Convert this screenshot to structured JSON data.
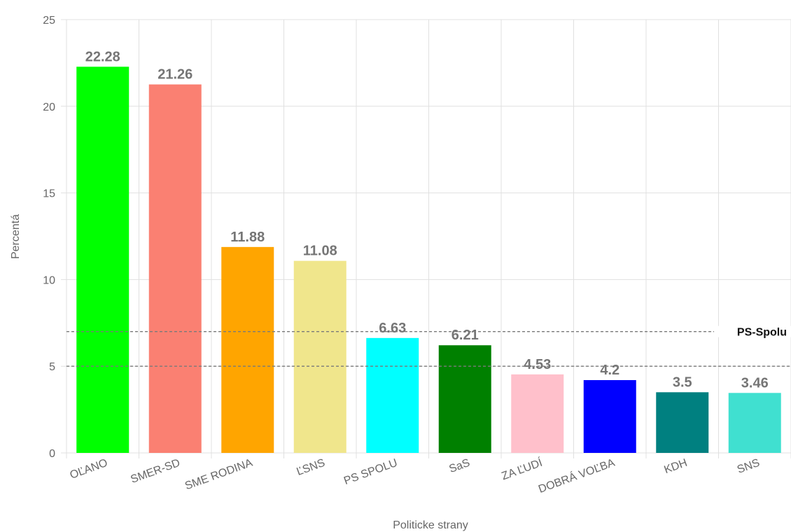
{
  "chart_data": {
    "type": "bar",
    "xlabel": "Politicke strany",
    "ylabel": "Percentá",
    "ylim": [
      0,
      25
    ],
    "yticks": [
      "0",
      "5",
      "10",
      "15",
      "20",
      "25"
    ],
    "grid": true,
    "categories": [
      "OĽANO",
      "SMER-SD",
      "SME RODINA",
      "ĽSNS",
      "PS SPOLU",
      "SaS",
      "ZA ĽUDÍ",
      "DOBRÁ VOĽBA",
      "KDH",
      "SNS"
    ],
    "values": [
      22.28,
      21.26,
      11.88,
      11.08,
      6.63,
      6.21,
      4.53,
      4.2,
      3.5,
      3.46
    ],
    "value_labels": [
      "22.28",
      "21.26",
      "11.88",
      "11.08",
      "6.63",
      "6.21",
      "4.53",
      "4.2",
      "3.5",
      "3.46"
    ],
    "colors": [
      "#00ff00",
      "#fa8072",
      "#ffa500",
      "#f0e68c",
      "#00ffff",
      "#008000",
      "#ffc0cb",
      "#0000ff",
      "#008080",
      "#40e0d0"
    ],
    "reference_lines": [
      {
        "value": 7,
        "label": "PS-Spolu"
      },
      {
        "value": 5,
        "label": ""
      }
    ]
  }
}
